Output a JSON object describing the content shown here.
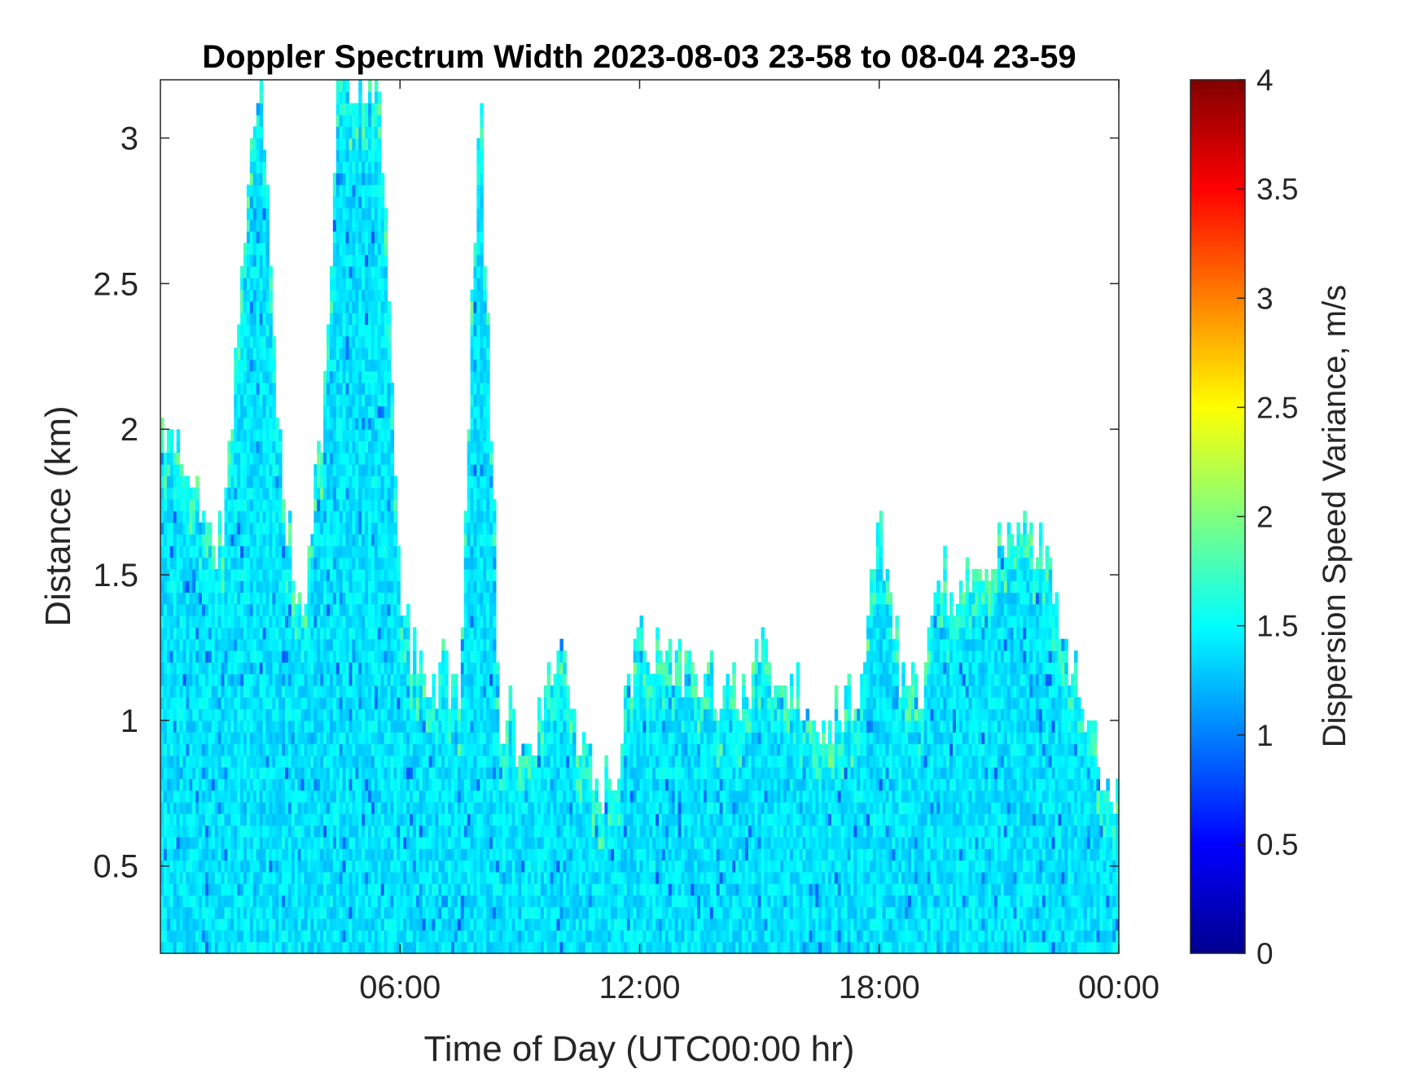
{
  "chart_data": {
    "type": "heatmap",
    "title": "Doppler Spectrum Width 2023-08-03 23-58 to 08-04 23-59",
    "xlabel": "Time of Day (UTC00:00 hr)",
    "ylabel": "Distance (km)",
    "x_range_hours": [
      0,
      24
    ],
    "x_ticks": [
      {
        "hour": 6,
        "label": "06:00"
      },
      {
        "hour": 12,
        "label": "12:00"
      },
      {
        "hour": 18,
        "label": "18:00"
      },
      {
        "hour": 24,
        "label": "00:00"
      }
    ],
    "ylim": [
      0.2,
      3.2
    ],
    "y_ticks": [
      {
        "value": 0.5,
        "label": "0.5"
      },
      {
        "value": 1,
        "label": "1"
      },
      {
        "value": 1.5,
        "label": "1.5"
      },
      {
        "value": 2,
        "label": "2"
      },
      {
        "value": 2.5,
        "label": "2.5"
      },
      {
        "value": 3,
        "label": "3"
      }
    ],
    "colorbar": {
      "label": "Dispersion Speed Variance, m/s",
      "range": [
        0,
        4
      ],
      "colormap": "jet",
      "ticks": [
        {
          "value": 0,
          "label": "0"
        },
        {
          "value": 0.5,
          "label": "0.5"
        },
        {
          "value": 1,
          "label": "1"
        },
        {
          "value": 1.5,
          "label": "1.5"
        },
        {
          "value": 2,
          "label": "2"
        },
        {
          "value": 2.5,
          "label": "2.5"
        },
        {
          "value": 3,
          "label": "3"
        },
        {
          "value": 3.5,
          "label": "3.5"
        },
        {
          "value": 4,
          "label": "4"
        }
      ]
    },
    "typical_value_ms": 1.4,
    "echo_top_profile_km": {
      "hours": [
        0,
        0.5,
        1,
        1.5,
        2,
        2.5,
        3,
        3.5,
        4,
        4.5,
        5,
        5.5,
        6,
        6.5,
        7,
        7.5,
        8,
        8.5,
        9,
        9.5,
        10,
        10.5,
        11,
        11.5,
        12,
        12.5,
        13,
        13.5,
        14,
        14.5,
        15,
        15.5,
        16,
        16.5,
        17,
        17.5,
        18,
        18.5,
        19,
        19.5,
        20,
        20.5,
        21,
        21.5,
        22,
        22.5,
        23,
        23.5,
        24
      ],
      "top_km": [
        2.0,
        1.9,
        1.7,
        1.6,
        2.4,
        3.2,
        1.9,
        1.3,
        1.9,
        3.2,
        3.2,
        3.2,
        1.3,
        1.15,
        1.15,
        1.1,
        3.2,
        1.0,
        0.95,
        0.95,
        1.2,
        0.85,
        0.75,
        0.85,
        1.3,
        1.2,
        1.15,
        1.1,
        1.1,
        1.05,
        1.25,
        1.1,
        1.05,
        0.9,
        1.0,
        1.1,
        1.7,
        1.2,
        1.1,
        1.5,
        1.35,
        1.55,
        1.6,
        1.6,
        1.65,
        1.3,
        1.1,
        0.85,
        0.75
      ]
    }
  }
}
